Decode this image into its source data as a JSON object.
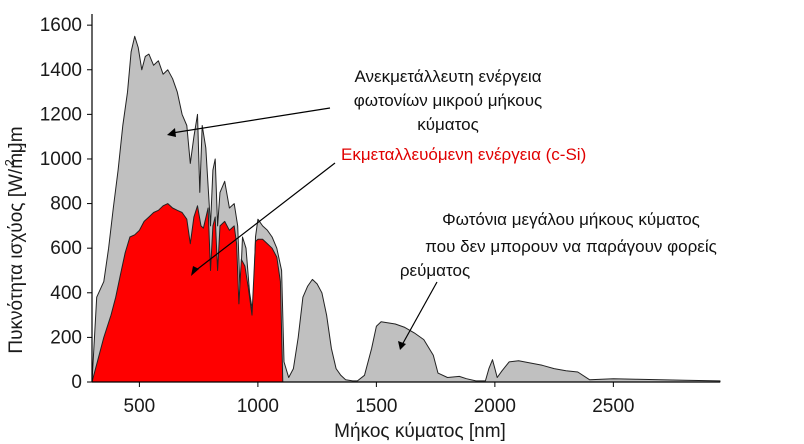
{
  "chart_data": {
    "type": "area",
    "xlabel": "Μήκος κύματος [nm]",
    "ylabel": "Πυκνότητα ισχύος [W/m ]",
    "ylabel_unit": "μm",
    "ylabel_sup": "2",
    "xlim": [
      300,
      2950
    ],
    "ylim": [
      0,
      1650
    ],
    "x_ticks": [
      500,
      1000,
      1500,
      2000,
      2500
    ],
    "y_ticks": [
      0,
      200,
      400,
      600,
      800,
      1000,
      1200,
      1400,
      1600
    ],
    "grid": false,
    "legend": "none",
    "series": [
      {
        "color": "#c0c0c0",
        "points": [
          [
            300,
            0
          ],
          [
            320,
            380
          ],
          [
            350,
            450
          ],
          [
            370,
            600
          ],
          [
            390,
            780
          ],
          [
            410,
            950
          ],
          [
            430,
            1150
          ],
          [
            450,
            1300
          ],
          [
            465,
            1480
          ],
          [
            480,
            1550
          ],
          [
            495,
            1500
          ],
          [
            510,
            1400
          ],
          [
            525,
            1460
          ],
          [
            540,
            1470
          ],
          [
            560,
            1420
          ],
          [
            580,
            1440
          ],
          [
            600,
            1380
          ],
          [
            620,
            1400
          ],
          [
            640,
            1360
          ],
          [
            660,
            1300
          ],
          [
            680,
            1200
          ],
          [
            700,
            1150
          ],
          [
            715,
            980
          ],
          [
            730,
            1100
          ],
          [
            745,
            1200
          ],
          [
            755,
            850
          ],
          [
            765,
            1150
          ],
          [
            780,
            1050
          ],
          [
            800,
            700
          ],
          [
            810,
            950
          ],
          [
            820,
            1000
          ],
          [
            830,
            700
          ],
          [
            840,
            850
          ],
          [
            860,
            900
          ],
          [
            880,
            780
          ],
          [
            900,
            800
          ],
          [
            915,
            700
          ],
          [
            925,
            400
          ],
          [
            935,
            650
          ],
          [
            950,
            600
          ],
          [
            965,
            400
          ],
          [
            980,
            300
          ],
          [
            990,
            650
          ],
          [
            1000,
            730
          ],
          [
            1020,
            700
          ],
          [
            1040,
            680
          ],
          [
            1060,
            650
          ],
          [
            1080,
            600
          ],
          [
            1100,
            500
          ],
          [
            1110,
            90
          ],
          [
            1130,
            20
          ],
          [
            1150,
            60
          ],
          [
            1170,
            200
          ],
          [
            1190,
            380
          ],
          [
            1210,
            430
          ],
          [
            1230,
            460
          ],
          [
            1250,
            440
          ],
          [
            1270,
            400
          ],
          [
            1290,
            300
          ],
          [
            1310,
            150
          ],
          [
            1330,
            60
          ],
          [
            1350,
            30
          ],
          [
            1370,
            10
          ],
          [
            1400,
            5
          ],
          [
            1420,
            5
          ],
          [
            1450,
            30
          ],
          [
            1480,
            150
          ],
          [
            1500,
            250
          ],
          [
            1520,
            270
          ],
          [
            1550,
            265
          ],
          [
            1580,
            260
          ],
          [
            1620,
            245
          ],
          [
            1660,
            220
          ],
          [
            1700,
            190
          ],
          [
            1740,
            120
          ],
          [
            1760,
            40
          ],
          [
            1800,
            20
          ],
          [
            1850,
            25
          ],
          [
            1880,
            15
          ],
          [
            1920,
            5
          ],
          [
            1960,
            5
          ],
          [
            1975,
            60
          ],
          [
            1990,
            100
          ],
          [
            2000,
            60
          ],
          [
            2010,
            20
          ],
          [
            2030,
            50
          ],
          [
            2060,
            90
          ],
          [
            2100,
            95
          ],
          [
            2150,
            85
          ],
          [
            2200,
            75
          ],
          [
            2250,
            60
          ],
          [
            2300,
            50
          ],
          [
            2350,
            45
          ],
          [
            2400,
            10
          ],
          [
            2450,
            12
          ],
          [
            2500,
            15
          ],
          [
            2600,
            12
          ],
          [
            2700,
            10
          ],
          [
            2800,
            8
          ],
          [
            2950,
            5
          ]
        ]
      },
      {
        "color": "#ff0000",
        "points": [
          [
            300,
            0
          ],
          [
            320,
            80
          ],
          [
            350,
            200
          ],
          [
            380,
            300
          ],
          [
            400,
            380
          ],
          [
            420,
            480
          ],
          [
            440,
            580
          ],
          [
            460,
            650
          ],
          [
            480,
            660
          ],
          [
            500,
            680
          ],
          [
            520,
            720
          ],
          [
            540,
            740
          ],
          [
            560,
            760
          ],
          [
            580,
            770
          ],
          [
            600,
            790
          ],
          [
            620,
            800
          ],
          [
            640,
            780
          ],
          [
            660,
            770
          ],
          [
            680,
            760
          ],
          [
            700,
            730
          ],
          [
            715,
            620
          ],
          [
            730,
            740
          ],
          [
            745,
            790
          ],
          [
            760,
            700
          ],
          [
            770,
            690
          ],
          [
            790,
            780
          ],
          [
            800,
            500
          ],
          [
            810,
            700
          ],
          [
            820,
            740
          ],
          [
            830,
            500
          ],
          [
            840,
            700
          ],
          [
            860,
            720
          ],
          [
            880,
            680
          ],
          [
            900,
            700
          ],
          [
            910,
            620
          ],
          [
            920,
            350
          ],
          [
            930,
            550
          ],
          [
            945,
            520
          ],
          [
            960,
            420
          ],
          [
            975,
            300
          ],
          [
            990,
            630
          ],
          [
            1000,
            640
          ],
          [
            1020,
            640
          ],
          [
            1040,
            620
          ],
          [
            1060,
            600
          ],
          [
            1080,
            560
          ],
          [
            1095,
            450
          ],
          [
            1105,
            0
          ]
        ]
      }
    ],
    "annotations": [
      {
        "lines": [
          "Ανεκμετάλλευτη ενέργεια",
          "φωτονίων μικρού μήκους",
          "κύματος"
        ],
        "color": "#111111"
      },
      {
        "lines": [
          "Εκμεταλλευόμενη ενέργεια (c-Si)"
        ],
        "color": "#e00000"
      },
      {
        "lines": [
          "Φωτόνια μεγάλου μήκους κύματος",
          "που δεν μπορουν να παράγουν φορείς",
          "ρεύματος"
        ],
        "color": "#111111"
      }
    ]
  }
}
